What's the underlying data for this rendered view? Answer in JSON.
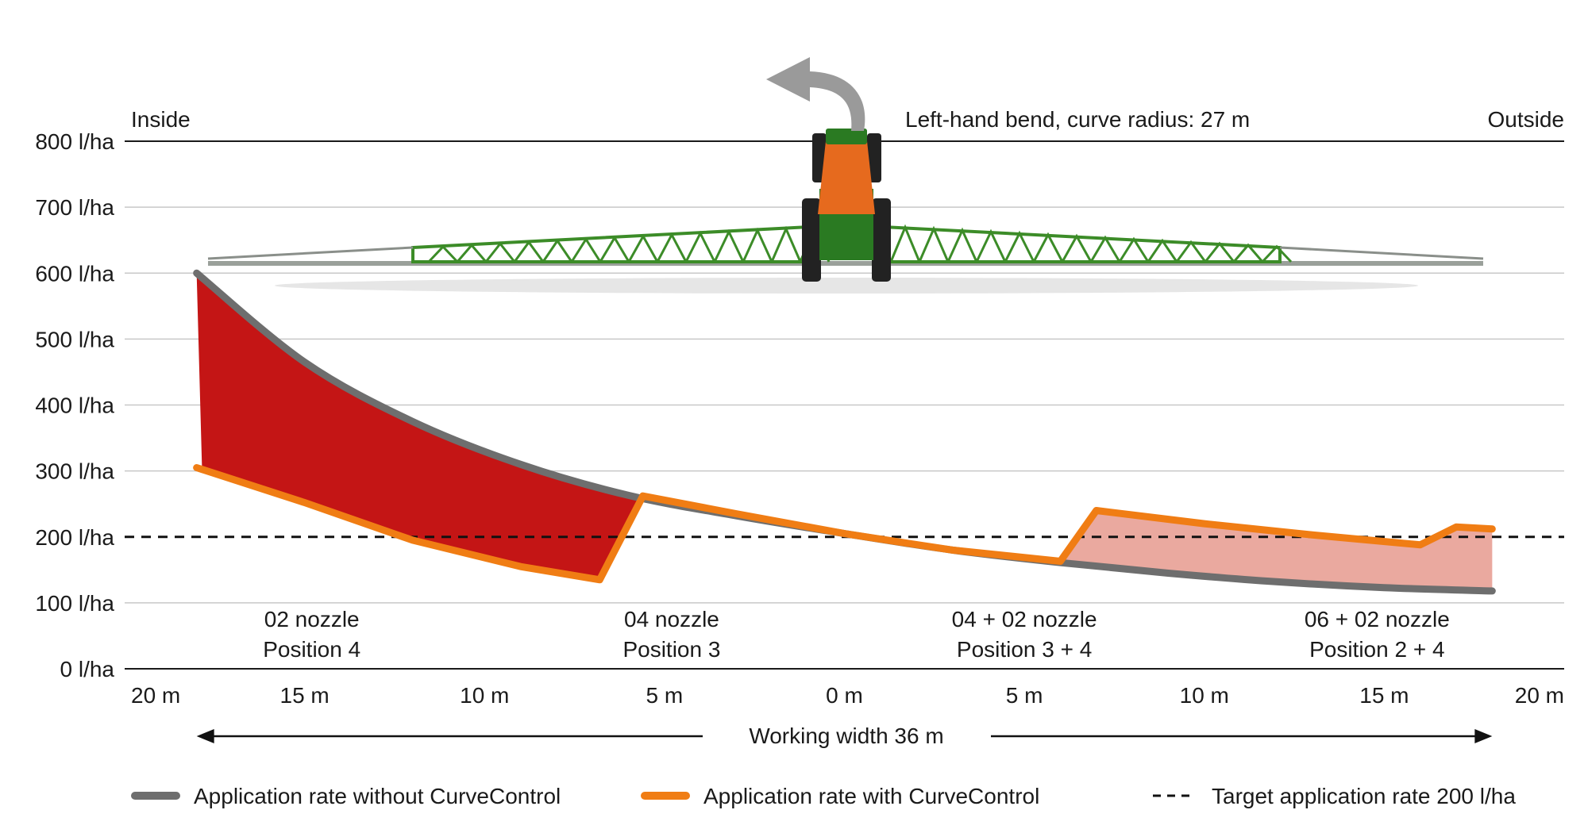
{
  "chart_data": {
    "type": "area",
    "title": "Left-hand bend, curve radius: 27 m",
    "inside_label": "Inside",
    "outside_label": "Outside",
    "y_ticks": [
      "0 l/ha",
      "100 l/ha",
      "200 l/ha",
      "300 l/ha",
      "400 l/ha",
      "500 l/ha",
      "600 l/ha",
      "700 l/ha",
      "800 l/ha"
    ],
    "ylim": [
      0,
      800
    ],
    "ystep": 100,
    "x_ticks": [
      {
        "value": -20,
        "label": "20 m"
      },
      {
        "value": -15,
        "label": "15 m"
      },
      {
        "value": -10,
        "label": "10 m"
      },
      {
        "value": -5,
        "label": "5 m"
      },
      {
        "value": 0,
        "label": "0 m"
      },
      {
        "value": 5,
        "label": "5 m"
      },
      {
        "value": 10,
        "label": "10 m"
      },
      {
        "value": 15,
        "label": "15 m"
      },
      {
        "value": 20,
        "label": "20 m"
      }
    ],
    "xlim": [
      -20,
      20
    ],
    "working_width_label": "Working width 36 m",
    "working_width_range": [
      -18,
      18
    ],
    "target_rate": 200,
    "colors": {
      "without": "#6e6e6e",
      "with": "#f07d14",
      "target": "#111111",
      "over_fill": "#c41515",
      "under_fill": "#eaa99f",
      "grid": "#c8c8c8",
      "axis": "#1a1a1a",
      "arrow": "#9a9a9a",
      "boom": "#3c8c28",
      "tractor_body": "#e66a1e",
      "tractor_frame": "#2a7a22",
      "tyre": "#222222"
    },
    "series": [
      {
        "name": "Application rate without CurveControl",
        "x": [
          -18,
          -15,
          -12,
          -9,
          -6,
          -3,
          0,
          3,
          6,
          9,
          12,
          15,
          18
        ],
        "values": [
          600,
          465,
          375,
          310,
          263,
          232,
          205,
          180,
          161,
          145,
          132,
          123,
          118
        ]
      },
      {
        "name": "Application rate with CurveControl",
        "x": [
          -18,
          -15,
          -12,
          -9,
          -6.8,
          -5.6,
          -3,
          0,
          3,
          6,
          7,
          10,
          13,
          16,
          17,
          18
        ],
        "values": [
          305,
          252,
          195,
          155,
          135,
          262,
          235,
          205,
          180,
          163,
          240,
          220,
          203,
          188,
          215,
          212
        ]
      },
      {
        "name": "Target application rate 200 l/ha",
        "x": [
          -20,
          20
        ],
        "values": [
          200,
          200
        ]
      }
    ],
    "nozzle_sections": [
      {
        "line1": "02 nozzle",
        "line2": "Position 4",
        "x": -14.8
      },
      {
        "line1": "04 nozzle",
        "line2": "Position 3",
        "x": -4.8
      },
      {
        "line1": "04 + 02 nozzle",
        "line2": "Position 3 + 4",
        "x": 5.0
      },
      {
        "line1": "06 + 02 nozzle",
        "line2": "Position 2 + 4",
        "x": 14.8
      }
    ],
    "legend": [
      {
        "label": "Application rate without CurveControl",
        "style": "without"
      },
      {
        "label": "Application rate with CurveControl",
        "style": "with"
      },
      {
        "label": "Target application rate 200 l/ha",
        "style": "target"
      }
    ]
  }
}
